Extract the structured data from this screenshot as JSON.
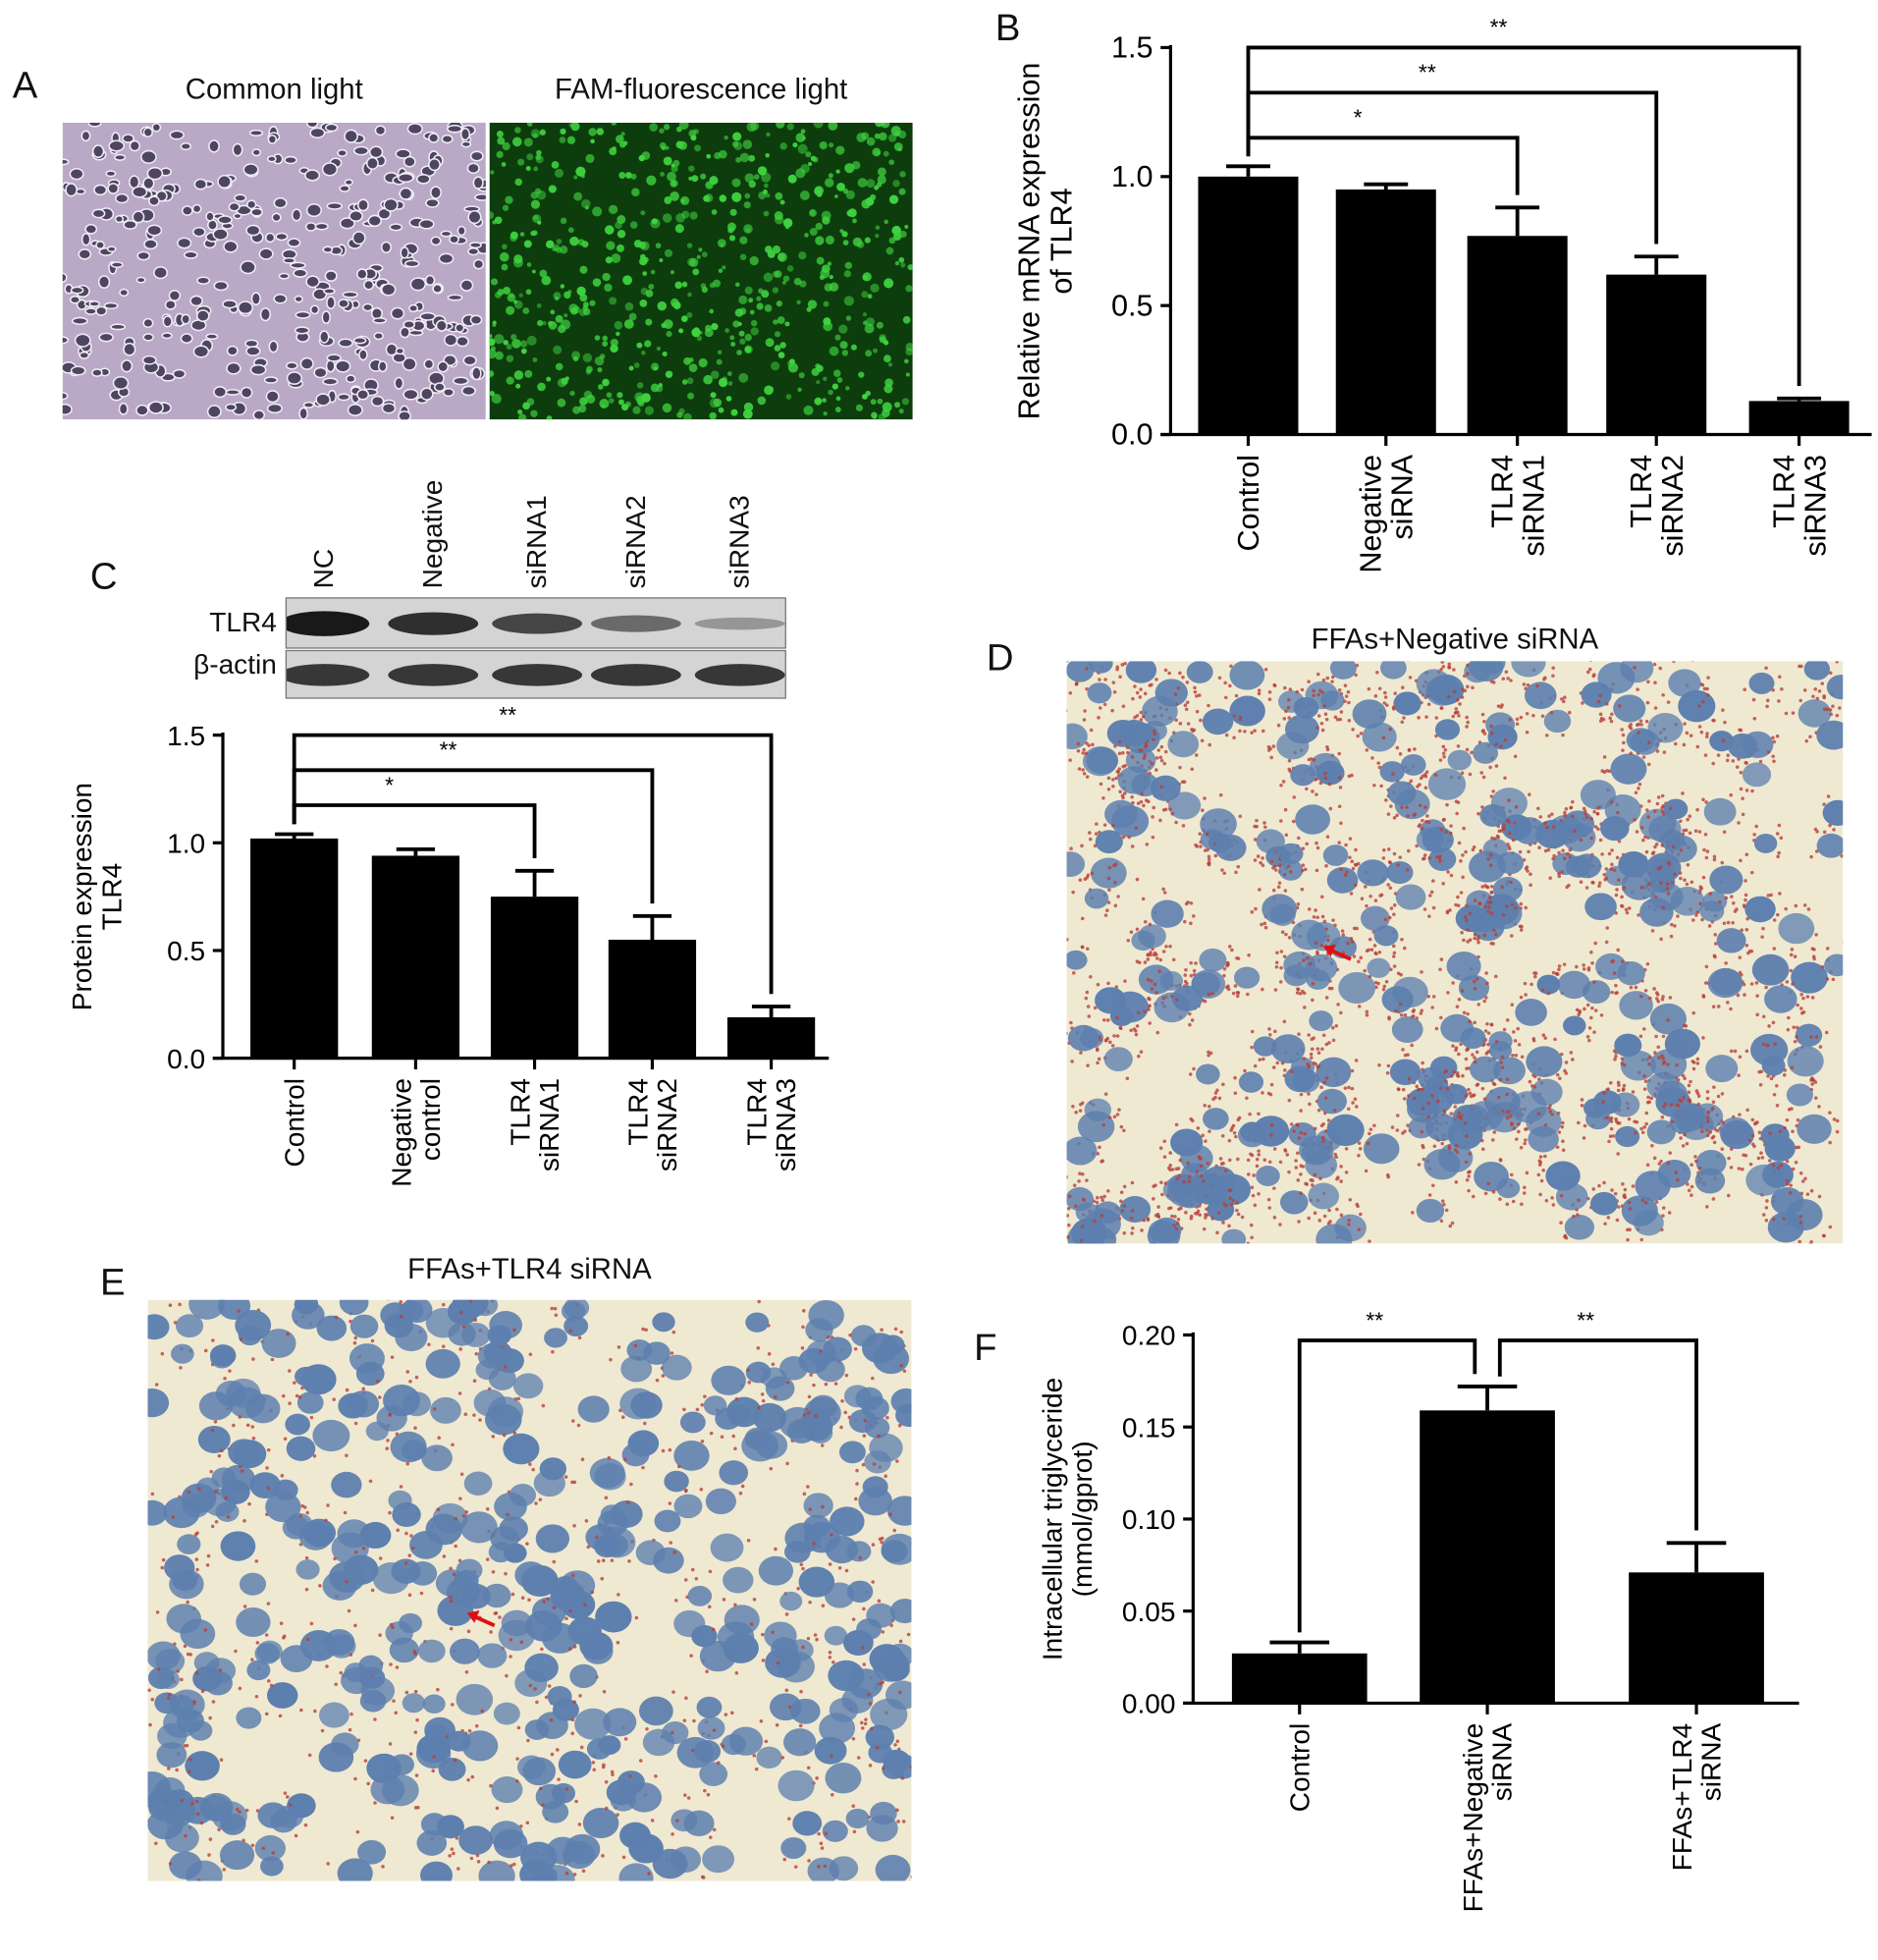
{
  "panel_a": {
    "label": "A",
    "titles": [
      "Common light",
      "FAM-fluorescence light"
    ]
  },
  "panel_b": {
    "label": "B"
  },
  "panel_c": {
    "label": "C",
    "blot": {
      "lanes": [
        "NC",
        "Negative",
        "siRNA1",
        "siRNA2",
        "siRNA3"
      ],
      "rows": [
        "TLR4",
        "β-actin"
      ],
      "tlr4_band_intensity": [
        1.0,
        0.85,
        0.7,
        0.45,
        0.15
      ]
    }
  },
  "panel_d": {
    "label": "D",
    "title": "FFAs+Negative siRNA"
  },
  "panel_e": {
    "label": "E",
    "title": "FFAs+TLR4 siRNA"
  },
  "panel_f": {
    "label": "F"
  },
  "colors": {
    "bar": "#000000",
    "common_light_bg": "#b9a9c6",
    "fluorescence_bg": "#0d3d0d",
    "fluorescence_cell": "#3fd23f",
    "stain_bg": "#efe9d2",
    "nucleus": "#5d7fae",
    "lipid": "#b8403a",
    "arrow": "#e01010"
  },
  "chart_data": [
    {
      "id": "B",
      "type": "bar",
      "ylabel": [
        "Relative mRNA expression",
        "of TLR4"
      ],
      "ylim": [
        0,
        1.5
      ],
      "yticks": [
        "0.0",
        "0.5",
        "1.0",
        "1.5"
      ],
      "categories": [
        [
          "Control"
        ],
        [
          "Negative",
          "siRNA"
        ],
        [
          "TLR4",
          "siRNA1"
        ],
        [
          "TLR4",
          "siRNA2"
        ],
        [
          "TLR4",
          "siRNA3"
        ]
      ],
      "values": [
        1.0,
        0.95,
        0.77,
        0.62,
        0.13
      ],
      "errors": [
        0.04,
        0.02,
        0.11,
        0.07,
        0.01
      ],
      "significance": [
        {
          "from": 0,
          "to": 2,
          "label": "*"
        },
        {
          "from": 0,
          "to": 3,
          "label": "**"
        },
        {
          "from": 0,
          "to": 4,
          "label": "**"
        }
      ]
    },
    {
      "id": "C",
      "type": "bar",
      "ylabel": [
        "Protein expression",
        "TLR4"
      ],
      "ylim": [
        0,
        1.5
      ],
      "yticks": [
        "0.0",
        "0.5",
        "1.0",
        "1.5"
      ],
      "categories": [
        [
          "Control"
        ],
        [
          "Negative",
          "control"
        ],
        [
          "TLR4",
          "siRNA1"
        ],
        [
          "TLR4",
          "siRNA2"
        ],
        [
          "TLR4",
          "siRNA3"
        ]
      ],
      "values": [
        1.02,
        0.94,
        0.75,
        0.55,
        0.19
      ],
      "errors": [
        0.02,
        0.03,
        0.12,
        0.11,
        0.05
      ],
      "significance": [
        {
          "from": 0,
          "to": 2,
          "label": "*"
        },
        {
          "from": 0,
          "to": 3,
          "label": "**"
        },
        {
          "from": 0,
          "to": 4,
          "label": "**"
        }
      ]
    },
    {
      "id": "F",
      "type": "bar",
      "ylabel": [
        "Intracellular triglyceride",
        "(mmol/gprot)"
      ],
      "ylim": [
        0,
        0.2
      ],
      "yticks": [
        "0.00",
        "0.05",
        "0.10",
        "0.15",
        "0.20"
      ],
      "categories": [
        [
          "Control"
        ],
        [
          "FFAs+Negative",
          "siRNA"
        ],
        [
          "FFAs+TLR4",
          "siRNA"
        ]
      ],
      "values": [
        0.027,
        0.159,
        0.071
      ],
      "errors": [
        0.006,
        0.013,
        0.016
      ],
      "significance": [
        {
          "from": 0,
          "to": 1,
          "label": "**"
        },
        {
          "from": 1,
          "to": 2,
          "label": "**"
        }
      ]
    }
  ]
}
